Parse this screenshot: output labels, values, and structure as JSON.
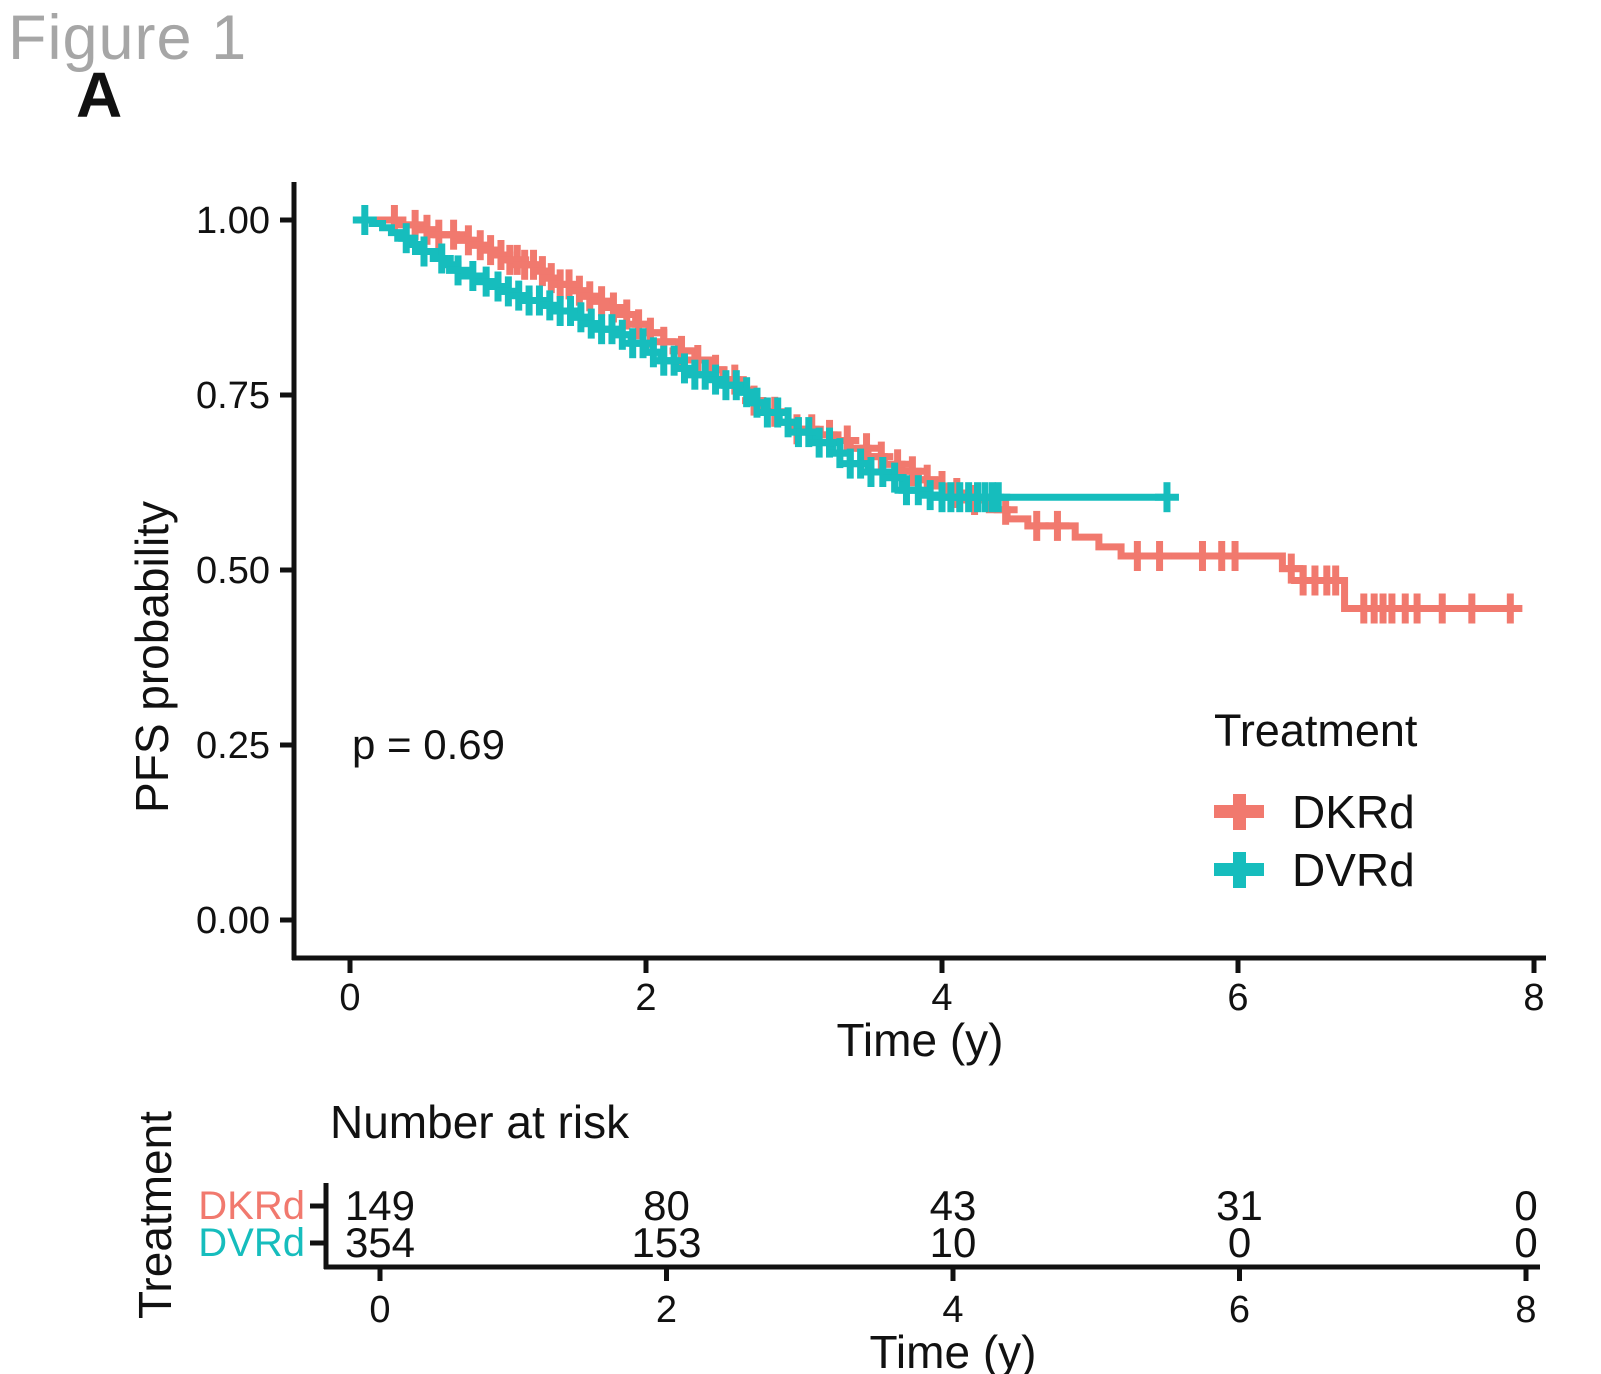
{
  "figure": {
    "title": "Figure 1",
    "panel": "A"
  },
  "colors": {
    "dkrd": "#f1796e",
    "dvrd": "#16bdbd",
    "axis": "#111111",
    "title_gray": "#a6a6a6"
  },
  "chart_data": {
    "type": "line",
    "subtype": "kaplan-meier-step",
    "title": "",
    "xlabel": "Time (y)",
    "ylabel": "PFS probability",
    "xlim": [
      0,
      8
    ],
    "ylim": [
      0,
      1
    ],
    "grid": "off",
    "pvalue_text": "p = 0.69",
    "x_tick_labels": [
      "0",
      "2",
      "4",
      "6",
      "8"
    ],
    "x_tick_values": [
      0,
      2,
      4,
      6,
      8
    ],
    "y_tick_labels": [
      "0.00",
      "0.25",
      "0.50",
      "0.75",
      "1.00"
    ],
    "y_tick_values": [
      0,
      0.25,
      0.5,
      0.75,
      1
    ],
    "legend": {
      "title": "Treatment",
      "position": "right-middle",
      "entries": [
        {
          "label": "DKRd",
          "color": "#f1796e"
        },
        {
          "label": "DVRd",
          "color": "#16bdbd"
        }
      ]
    },
    "series": [
      {
        "name": "DKRd",
        "color": "#f1796e",
        "end_time": 7.92,
        "steps": [
          [
            0.06,
            1.0
          ],
          [
            0.32,
            0.993
          ],
          [
            0.45,
            0.986
          ],
          [
            0.58,
            0.979
          ],
          [
            0.72,
            0.971
          ],
          [
            0.82,
            0.964
          ],
          [
            0.92,
            0.957
          ],
          [
            1.0,
            0.95
          ],
          [
            1.08,
            0.943
          ],
          [
            1.16,
            0.936
          ],
          [
            1.25,
            0.927
          ],
          [
            1.33,
            0.917
          ],
          [
            1.41,
            0.908
          ],
          [
            1.5,
            0.899
          ],
          [
            1.58,
            0.891
          ],
          [
            1.66,
            0.884
          ],
          [
            1.76,
            0.875
          ],
          [
            1.85,
            0.865
          ],
          [
            1.93,
            0.851
          ],
          [
            2.02,
            0.839
          ],
          [
            2.12,
            0.826
          ],
          [
            2.22,
            0.813
          ],
          [
            2.33,
            0.8
          ],
          [
            2.43,
            0.786
          ],
          [
            2.52,
            0.772
          ],
          [
            2.62,
            0.757
          ],
          [
            2.7,
            0.742
          ],
          [
            2.79,
            0.726
          ],
          [
            2.88,
            0.711
          ],
          [
            3.0,
            0.701
          ],
          [
            3.15,
            0.693
          ],
          [
            3.27,
            0.685
          ],
          [
            3.38,
            0.674
          ],
          [
            3.5,
            0.662
          ],
          [
            3.61,
            0.651
          ],
          [
            3.73,
            0.641
          ],
          [
            3.84,
            0.629
          ],
          [
            3.95,
            0.62
          ],
          [
            4.08,
            0.61
          ],
          [
            4.2,
            0.6
          ],
          [
            4.32,
            0.586
          ],
          [
            4.44,
            0.573
          ],
          [
            4.58,
            0.563
          ],
          [
            4.9,
            0.547
          ],
          [
            5.06,
            0.533
          ],
          [
            5.21,
            0.52
          ],
          [
            6.3,
            0.502
          ],
          [
            6.44,
            0.485
          ],
          [
            6.72,
            0.445
          ]
        ],
        "censor_times": [
          0.3,
          0.44,
          0.52,
          0.6,
          0.7,
          0.8,
          0.88,
          0.95,
          1.02,
          1.08,
          1.13,
          1.18,
          1.24,
          1.3,
          1.36,
          1.42,
          1.48,
          1.55,
          1.62,
          1.7,
          1.78,
          1.87,
          1.95,
          2.03,
          2.12,
          2.24,
          2.35,
          2.47,
          2.6,
          2.73,
          2.87,
          3.02,
          3.12,
          3.24,
          3.36,
          3.49,
          3.59,
          3.7,
          3.8,
          3.9,
          4.0,
          4.1,
          4.22,
          4.43,
          4.64,
          4.78,
          5.32,
          5.47,
          5.76,
          5.89,
          5.98,
          6.36,
          6.44,
          6.52,
          6.6,
          6.66,
          6.85,
          6.92,
          6.98,
          7.04,
          7.13,
          7.21,
          7.38,
          7.58,
          7.84
        ]
      },
      {
        "name": "DVRd",
        "color": "#16bdbd",
        "end_time": 5.52,
        "steps": [
          [
            0.05,
            1.0
          ],
          [
            0.15,
            0.995
          ],
          [
            0.22,
            0.989
          ],
          [
            0.28,
            0.982
          ],
          [
            0.35,
            0.974
          ],
          [
            0.42,
            0.965
          ],
          [
            0.5,
            0.955
          ],
          [
            0.58,
            0.945
          ],
          [
            0.65,
            0.936
          ],
          [
            0.73,
            0.928
          ],
          [
            0.81,
            0.92
          ],
          [
            0.88,
            0.912
          ],
          [
            0.96,
            0.905
          ],
          [
            1.04,
            0.898
          ],
          [
            1.12,
            0.892
          ],
          [
            1.21,
            0.885
          ],
          [
            1.31,
            0.878
          ],
          [
            1.41,
            0.87
          ],
          [
            1.5,
            0.861
          ],
          [
            1.6,
            0.852
          ],
          [
            1.7,
            0.844
          ],
          [
            1.8,
            0.836
          ],
          [
            1.9,
            0.824
          ],
          [
            2.0,
            0.811
          ],
          [
            2.1,
            0.799
          ],
          [
            2.2,
            0.788
          ],
          [
            2.3,
            0.779
          ],
          [
            2.42,
            0.772
          ],
          [
            2.53,
            0.764
          ],
          [
            2.64,
            0.754
          ],
          [
            2.72,
            0.739
          ],
          [
            2.8,
            0.725
          ],
          [
            2.9,
            0.711
          ],
          [
            3.02,
            0.697
          ],
          [
            3.14,
            0.682
          ],
          [
            3.26,
            0.667
          ],
          [
            3.38,
            0.652
          ],
          [
            3.5,
            0.64
          ],
          [
            3.62,
            0.632
          ],
          [
            3.73,
            0.614
          ],
          [
            3.85,
            0.607
          ],
          [
            3.95,
            0.604
          ]
        ],
        "censor_times": [
          0.1,
          0.38,
          0.5,
          0.62,
          0.73,
          0.83,
          0.92,
          1.0,
          1.07,
          1.14,
          1.21,
          1.28,
          1.35,
          1.42,
          1.49,
          1.56,
          1.63,
          1.7,
          1.77,
          1.84,
          1.91,
          1.98,
          2.05,
          2.12,
          2.19,
          2.26,
          2.33,
          2.4,
          2.47,
          2.54,
          2.61,
          2.68,
          2.75,
          2.82,
          2.89,
          2.96,
          3.03,
          3.1,
          3.17,
          3.24,
          3.31,
          3.38,
          3.45,
          3.52,
          3.6,
          3.68,
          3.76,
          3.84,
          3.92,
          4.0,
          4.06,
          4.12,
          4.18,
          4.24,
          4.29,
          4.34,
          4.38,
          5.52
        ]
      }
    ],
    "risk_table": {
      "title": "Number at risk",
      "axis_label": "Treatment",
      "xlabel": "Time (y)",
      "time_points": [
        0,
        2,
        4,
        6,
        8
      ],
      "time_tick_labels": [
        "0",
        "2",
        "4",
        "6",
        "8"
      ],
      "rows": [
        {
          "label": "DKRd",
          "color": "#f1796e",
          "values": [
            "149",
            "80",
            "43",
            "31",
            "0"
          ]
        },
        {
          "label": "DVRd",
          "color": "#16bdbd",
          "values": [
            "354",
            "153",
            "10",
            "0",
            "0"
          ]
        }
      ]
    }
  }
}
